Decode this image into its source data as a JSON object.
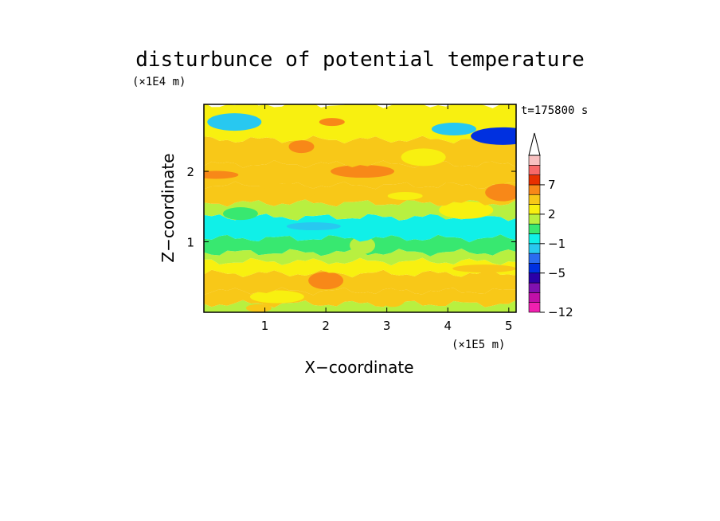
{
  "chart_data": {
    "type": "heatmap",
    "title": "disturbunce of potential temperature",
    "time_label": "t=175800 s",
    "xlabel": "X−coordinate",
    "ylabel": "Z−coordinate",
    "x_unit": "(×1E5 m)",
    "y_unit": "(×1E4 m)",
    "xlim": [
      0,
      5.12
    ],
    "ylim": [
      0,
      2.95
    ],
    "x_ticks": [
      1,
      2,
      3,
      4,
      5
    ],
    "y_ticks": [
      1,
      2
    ],
    "x_tick_labels": [
      "1",
      "2",
      "3",
      "4",
      "5"
    ],
    "y_tick_labels": [
      "1",
      "2"
    ],
    "colorbar": {
      "levels": [
        -12,
        -10,
        -8,
        -7,
        -5,
        -4,
        -3,
        -1,
        0,
        1,
        2,
        3,
        5,
        7,
        8,
        9
      ],
      "labeled_ticks": [
        {
          "value": -12,
          "label": "−12"
        },
        {
          "value": -5,
          "label": "−5"
        },
        {
          "value": -1,
          "label": "−1"
        },
        {
          "value": 2,
          "label": "2"
        },
        {
          "value": 7,
          "label": "7"
        }
      ],
      "colors": [
        "#f020b0",
        "#c010a8",
        "#8010b0",
        "#2a00a8",
        "#0030e0",
        "#2a6cf0",
        "#28c8f0",
        "#10f0e8",
        "#38e870",
        "#b8f040",
        "#f8f010",
        "#f8c818",
        "#f88818",
        "#e83000",
        "#f86868",
        "#f8c0c0"
      ],
      "extend": "max"
    },
    "bands": [
      {
        "z": [
          0.0,
          0.12
        ],
        "level": 1,
        "anomalies": [
          {
            "x": 0.9,
            "z": 0.06,
            "level": 3
          }
        ]
      },
      {
        "z": [
          0.12,
          0.3
        ],
        "level": 3,
        "anomalies": [
          {
            "x": 1.2,
            "z": 0.22,
            "level": 2
          },
          {
            "x": 3.1,
            "z": 0.2,
            "level": 4
          }
        ]
      },
      {
        "z": [
          0.3,
          0.55
        ],
        "level": 4,
        "anomalies": [
          {
            "x": 2.0,
            "z": 0.45,
            "level": 5
          },
          {
            "x": 3.6,
            "z": 0.42,
            "level": 3
          }
        ]
      },
      {
        "z": [
          0.55,
          0.72
        ],
        "level": 2,
        "anomalies": [
          {
            "x": 4.6,
            "z": 0.62,
            "level": 3
          }
        ]
      },
      {
        "z": [
          0.72,
          0.85
        ],
        "level": 1,
        "anomalies": []
      },
      {
        "z": [
          0.85,
          1.05
        ],
        "level": 0,
        "anomalies": [
          {
            "x": 2.6,
            "z": 0.95,
            "level": 1
          }
        ]
      },
      {
        "z": [
          1.05,
          1.35
        ],
        "level": -1,
        "anomalies": [
          {
            "x": 1.8,
            "z": 1.22,
            "level": -3
          },
          {
            "x": 3.8,
            "z": 1.3,
            "level": -1
          }
        ]
      },
      {
        "z": [
          1.35,
          1.55
        ],
        "level": 1,
        "anomalies": [
          {
            "x": 0.6,
            "z": 1.4,
            "level": 0
          },
          {
            "x": 4.3,
            "z": 1.45,
            "level": 2
          }
        ]
      },
      {
        "z": [
          1.55,
          1.8
        ],
        "level": 3,
        "anomalies": [
          {
            "x": 1.3,
            "z": 1.7,
            "level": 4
          },
          {
            "x": 3.3,
            "z": 1.65,
            "level": 2
          }
        ]
      },
      {
        "z": [
          1.8,
          2.1
        ],
        "level": 4,
        "anomalies": [
          {
            "x": 0.2,
            "z": 1.95,
            "level": 5
          },
          {
            "x": 2.6,
            "z": 2.0,
            "level": 5
          },
          {
            "x": 4.9,
            "z": 1.7,
            "level": 6
          }
        ]
      },
      {
        "z": [
          2.1,
          2.45
        ],
        "level": 4,
        "anomalies": [
          {
            "x": 1.6,
            "z": 2.35,
            "level": 5
          },
          {
            "x": 3.6,
            "z": 2.2,
            "level": 2
          }
        ]
      },
      {
        "z": [
          2.45,
          2.95
        ],
        "level": 2,
        "anomalies": [
          {
            "x": 0.5,
            "z": 2.7,
            "level": -3
          },
          {
            "x": 2.1,
            "z": 2.7,
            "level": 5
          },
          {
            "x": 4.1,
            "z": 2.6,
            "level": -2
          },
          {
            "x": 4.9,
            "z": 2.5,
            "level": -5
          }
        ]
      }
    ]
  }
}
